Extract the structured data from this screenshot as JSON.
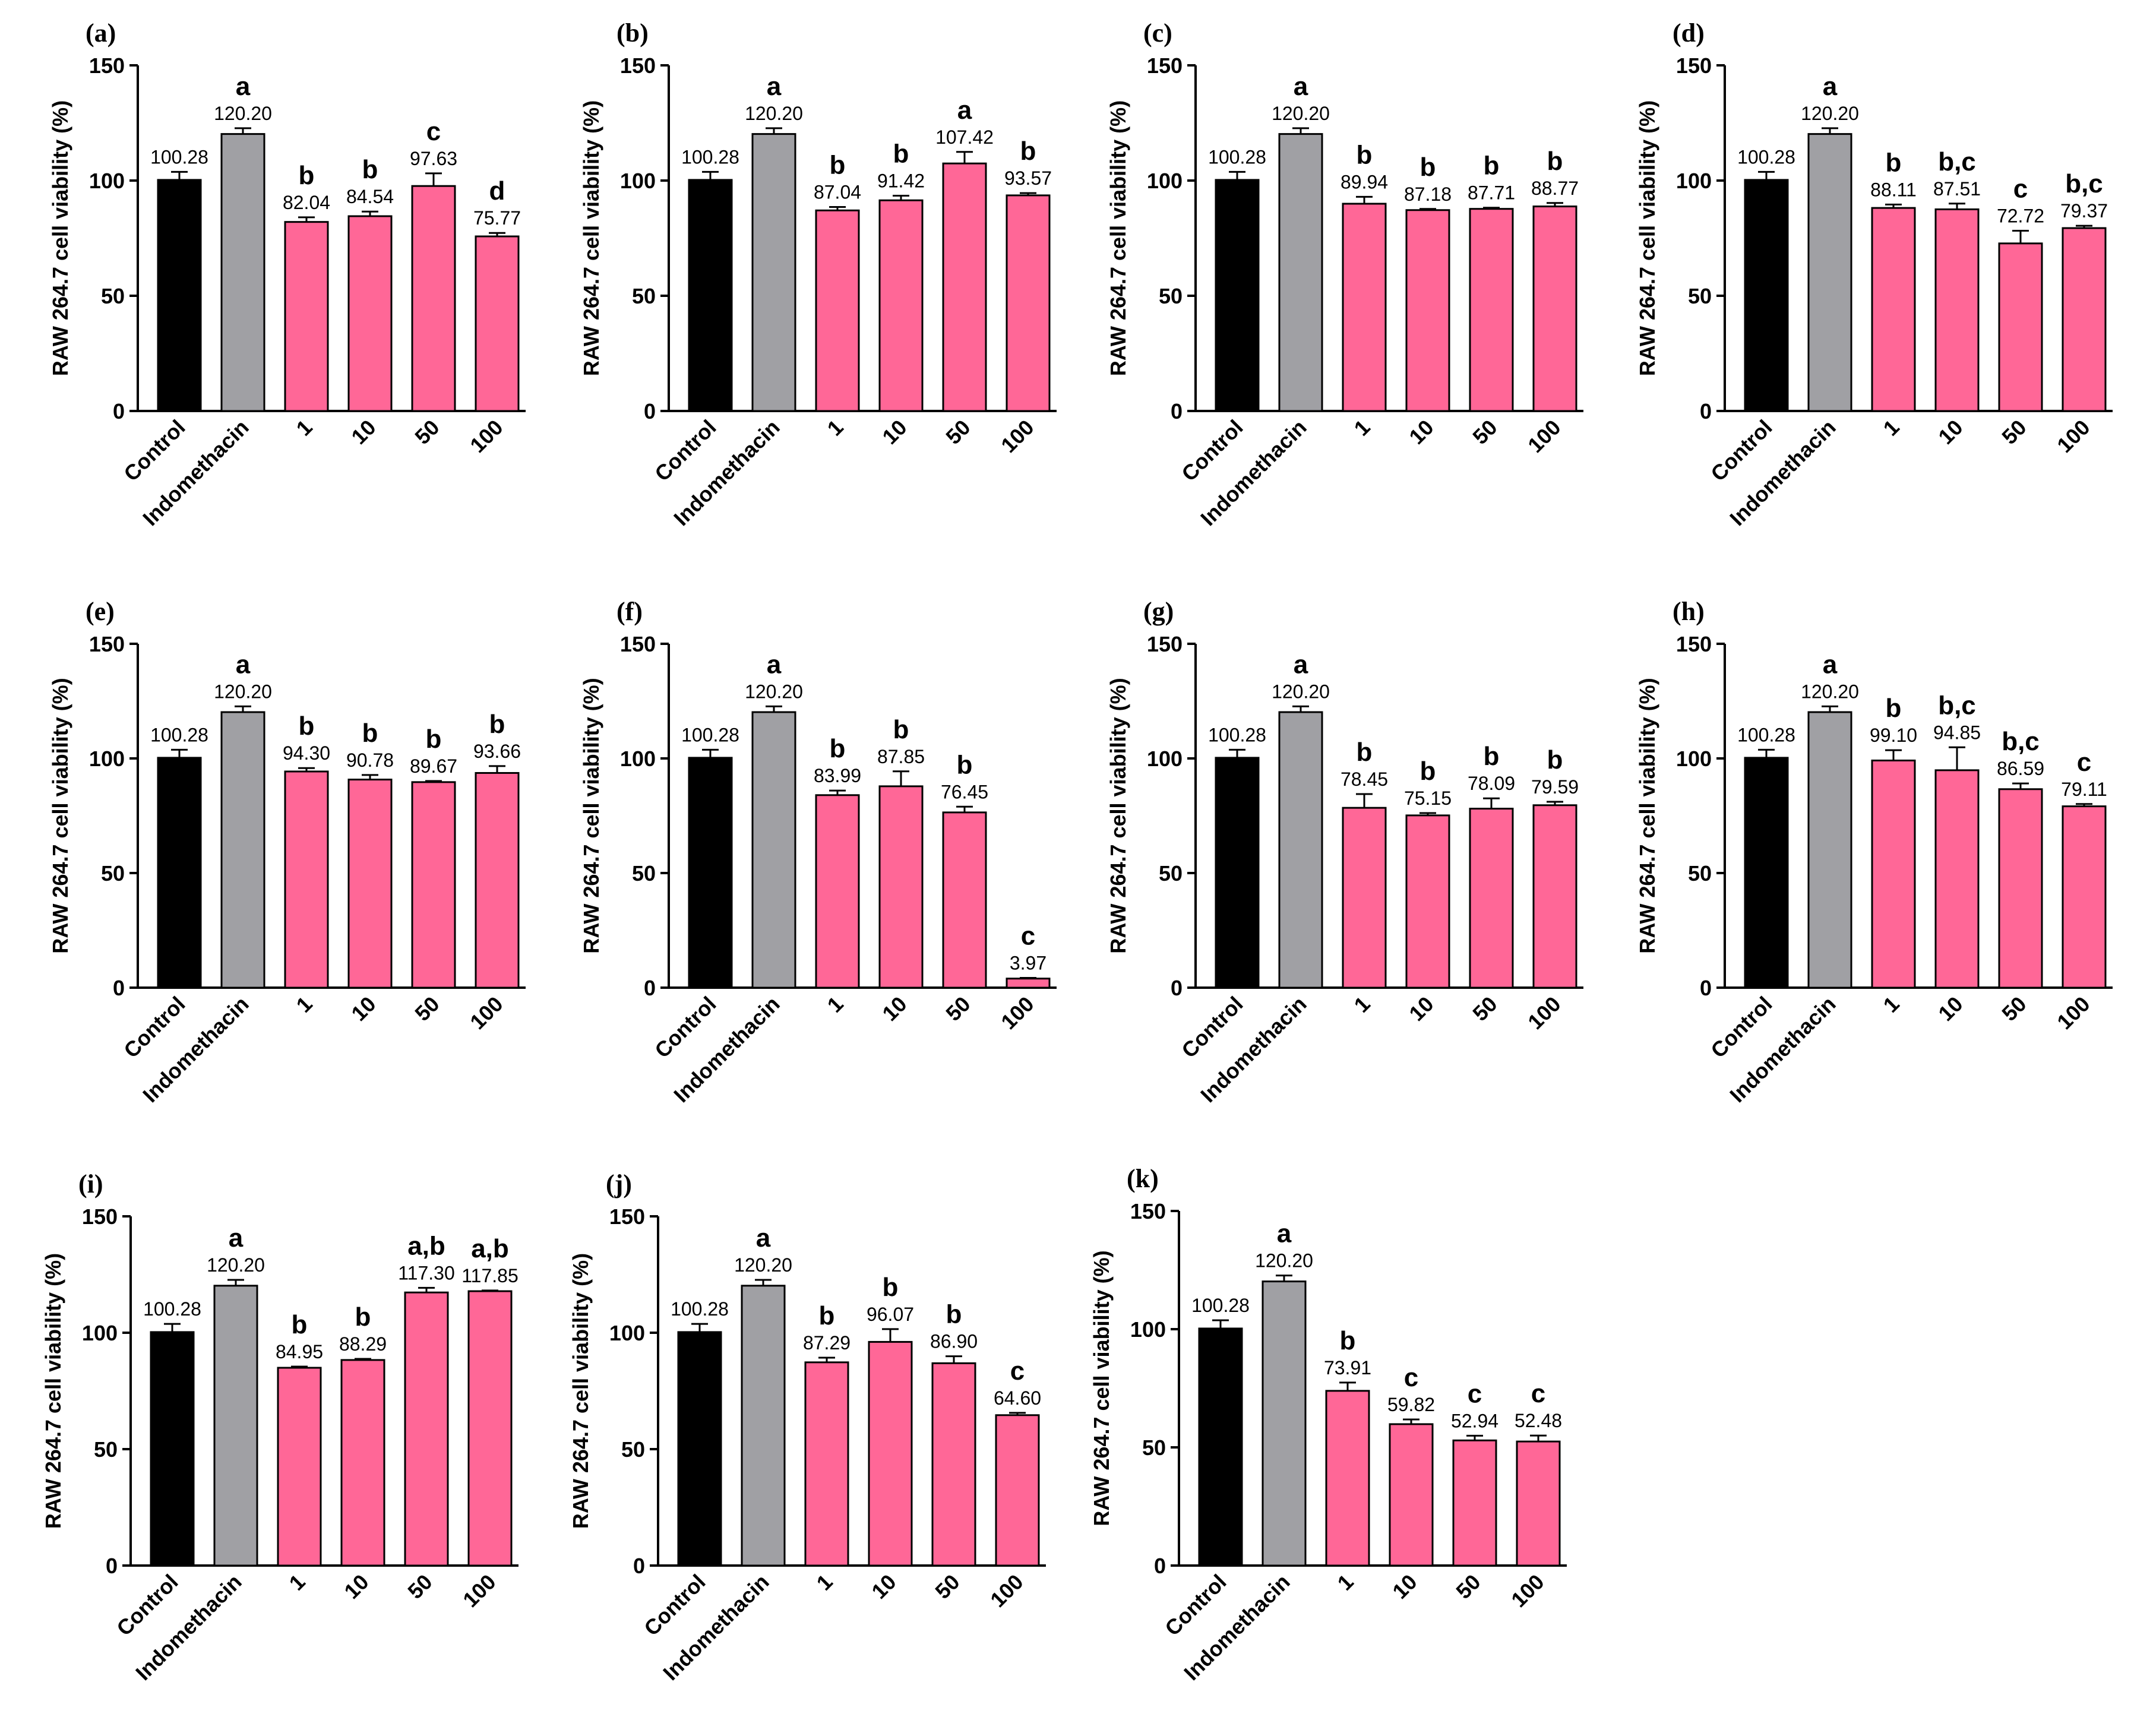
{
  "figure": {
    "colors": {
      "control": "#000000",
      "indomethacin": "#a0a0a4",
      "sample": "#ff6797",
      "outline": "#000000"
    }
  },
  "chart_data": [
    {
      "panel": "(a)",
      "type": "bar",
      "categories": [
        "Control",
        "Indomethacin",
        "1",
        "10",
        "50",
        "100"
      ],
      "values": [
        100.28,
        120.2,
        82.04,
        84.54,
        97.63,
        75.77
      ],
      "value_labels": [
        "100.28",
        "120.20",
        "82.04",
        "84.54",
        "97.63",
        "75.77"
      ],
      "error": [
        3.5,
        2.5,
        2.0,
        2.0,
        5.5,
        1.5
      ],
      "letters": [
        "",
        "a",
        "b",
        "b",
        "c",
        "d"
      ],
      "ylabel": "RAW 264.7 cell viability (%)",
      "ylim": [
        0,
        150
      ],
      "yticks": [
        0,
        50,
        100,
        150
      ]
    },
    {
      "panel": "(b)",
      "type": "bar",
      "categories": [
        "Control",
        "Indomethacin",
        "1",
        "10",
        "50",
        "100"
      ],
      "values": [
        100.28,
        120.2,
        87.04,
        91.42,
        107.42,
        93.57
      ],
      "value_labels": [
        "100.28",
        "120.20",
        "87.04",
        "91.42",
        "107.42",
        "93.57"
      ],
      "error": [
        3.5,
        2.5,
        1.5,
        2.0,
        5.0,
        1.0
      ],
      "letters": [
        "",
        "a",
        "b",
        "b",
        "a",
        "b"
      ],
      "ylabel": "RAW 264.7 cell viability (%)",
      "ylim": [
        0,
        150
      ],
      "yticks": [
        0,
        50,
        100,
        150
      ]
    },
    {
      "panel": "(c)",
      "type": "bar",
      "categories": [
        "Control",
        "Indomethacin",
        "1",
        "10",
        "50",
        "100"
      ],
      "values": [
        100.28,
        120.2,
        89.94,
        87.18,
        87.71,
        88.77
      ],
      "value_labels": [
        "100.28",
        "120.20",
        "89.94",
        "87.18",
        "87.71",
        "88.77"
      ],
      "error": [
        3.5,
        2.5,
        3.0,
        0.5,
        0.5,
        1.5
      ],
      "letters": [
        "",
        "a",
        "b",
        "b",
        "b",
        "b"
      ],
      "ylabel": "RAW 264.7 cell viability (%)",
      "ylim": [
        0,
        150
      ],
      "yticks": [
        0,
        50,
        100,
        150
      ]
    },
    {
      "panel": "(d)",
      "type": "bar",
      "categories": [
        "Control",
        "Indomethacin",
        "1",
        "10",
        "50",
        "100"
      ],
      "values": [
        100.28,
        120.2,
        88.11,
        87.51,
        72.72,
        79.37
      ],
      "value_labels": [
        "100.28",
        "120.20",
        "88.11",
        "87.51",
        "72.72",
        "79.37"
      ],
      "error": [
        3.5,
        2.5,
        1.5,
        2.5,
        5.5,
        1.0
      ],
      "letters": [
        "",
        "a",
        "b",
        "b,c",
        "c",
        "b,c"
      ],
      "ylabel": "RAW 264.7 cell viability (%)",
      "ylim": [
        0,
        150
      ],
      "yticks": [
        0,
        50,
        100,
        150
      ]
    },
    {
      "panel": "(e)",
      "type": "bar",
      "categories": [
        "Control",
        "Indomethacin",
        "1",
        "10",
        "50",
        "100"
      ],
      "values": [
        100.28,
        120.2,
        94.3,
        90.78,
        89.67,
        93.66
      ],
      "value_labels": [
        "100.28",
        "120.20",
        "94.30",
        "90.78",
        "89.67",
        "93.66"
      ],
      "error": [
        3.5,
        2.5,
        1.5,
        2.0,
        0.5,
        3.0
      ],
      "letters": [
        "",
        "a",
        "b",
        "b",
        "b",
        "b"
      ],
      "ylabel": "RAW 264.7 cell viability (%)",
      "ylim": [
        0,
        150
      ],
      "yticks": [
        0,
        50,
        100,
        150
      ]
    },
    {
      "panel": "(f)",
      "type": "bar",
      "categories": [
        "Control",
        "Indomethacin",
        "1",
        "10",
        "50",
        "100"
      ],
      "values": [
        100.28,
        120.2,
        83.99,
        87.85,
        76.45,
        3.97
      ],
      "value_labels": [
        "100.28",
        "120.20",
        "83.99",
        "87.85",
        "76.45",
        "3.97"
      ],
      "error": [
        3.5,
        2.5,
        2.0,
        6.5,
        2.5,
        0.3
      ],
      "letters": [
        "",
        "a",
        "b",
        "b",
        "b",
        "c"
      ],
      "ylabel": "RAW 264.7 cell viability (%)",
      "ylim": [
        0,
        150
      ],
      "yticks": [
        0,
        50,
        100,
        150
      ]
    },
    {
      "panel": "(g)",
      "type": "bar",
      "categories": [
        "Control",
        "Indomethacin",
        "1",
        "10",
        "50",
        "100"
      ],
      "values": [
        100.28,
        120.2,
        78.45,
        75.15,
        78.09,
        79.59
      ],
      "value_labels": [
        "100.28",
        "120.20",
        "78.45",
        "75.15",
        "78.09",
        "79.59"
      ],
      "error": [
        3.5,
        2.5,
        6.0,
        1.0,
        4.5,
        1.5
      ],
      "letters": [
        "",
        "a",
        "b",
        "b",
        "b",
        "b"
      ],
      "ylabel": "RAW 264.7 cell viability (%)",
      "ylim": [
        0,
        150
      ],
      "yticks": [
        0,
        50,
        100,
        150
      ]
    },
    {
      "panel": "(h)",
      "type": "bar",
      "categories": [
        "Control",
        "Indomethacin",
        "1",
        "10",
        "50",
        "100"
      ],
      "values": [
        100.28,
        120.2,
        99.1,
        94.85,
        86.59,
        79.11
      ],
      "value_labels": [
        "100.28",
        "120.20",
        "99.10",
        "94.85",
        "86.59",
        "79.11"
      ],
      "error": [
        3.5,
        2.5,
        4.5,
        10.0,
        2.5,
        1.0
      ],
      "letters": [
        "",
        "a",
        "b",
        "b,c",
        "b,c",
        "c"
      ],
      "ylabel": "RAW 264.7 cell viability (%)",
      "ylim": [
        0,
        150
      ],
      "yticks": [
        0,
        50,
        100,
        150
      ]
    },
    {
      "panel": "(i)",
      "type": "bar",
      "categories": [
        "Control",
        "Indomethacin",
        "1",
        "10",
        "50",
        "100"
      ],
      "values": [
        100.28,
        120.2,
        84.95,
        88.29,
        117.3,
        117.85
      ],
      "value_labels": [
        "100.28",
        "120.20",
        "84.95",
        "88.29",
        "117.30",
        "117.85"
      ],
      "error": [
        3.5,
        2.5,
        0.5,
        0.5,
        2.0,
        0.3
      ],
      "letters": [
        "",
        "a",
        "b",
        "b",
        "a,b",
        "a,b"
      ],
      "ylabel": "RAW 264.7 cell viability (%)",
      "ylim": [
        0,
        150
      ],
      "yticks": [
        0,
        50,
        100,
        150
      ]
    },
    {
      "panel": "(j)",
      "type": "bar",
      "categories": [
        "Control",
        "Indomethacin",
        "1",
        "10",
        "50",
        "100"
      ],
      "values": [
        100.28,
        120.2,
        87.29,
        96.07,
        86.9,
        64.6
      ],
      "value_labels": [
        "100.28",
        "120.20",
        "87.29",
        "96.07",
        "86.90",
        "64.60"
      ],
      "error": [
        3.5,
        2.5,
        2.0,
        5.5,
        3.0,
        1.0
      ],
      "letters": [
        "",
        "a",
        "b",
        "b",
        "b",
        "c"
      ],
      "ylabel": "RAW 264.7 cell viability (%)",
      "ylim": [
        0,
        150
      ],
      "yticks": [
        0,
        50,
        100,
        150
      ]
    },
    {
      "panel": "(k)",
      "type": "bar",
      "categories": [
        "Control",
        "Indomethacin",
        "1",
        "10",
        "50",
        "100"
      ],
      "values": [
        100.28,
        120.2,
        73.91,
        59.82,
        52.94,
        52.48
      ],
      "value_labels": [
        "100.28",
        "120.20",
        "73.91",
        "59.82",
        "52.94",
        "52.48"
      ],
      "error": [
        3.5,
        2.5,
        3.5,
        2.0,
        2.0,
        2.5
      ],
      "letters": [
        "",
        "a",
        "b",
        "c",
        "c",
        "c"
      ],
      "ylabel": "RAW 264.7 cell viability (%)",
      "ylim": [
        0,
        150
      ],
      "yticks": [
        0,
        50,
        100,
        150
      ]
    }
  ]
}
